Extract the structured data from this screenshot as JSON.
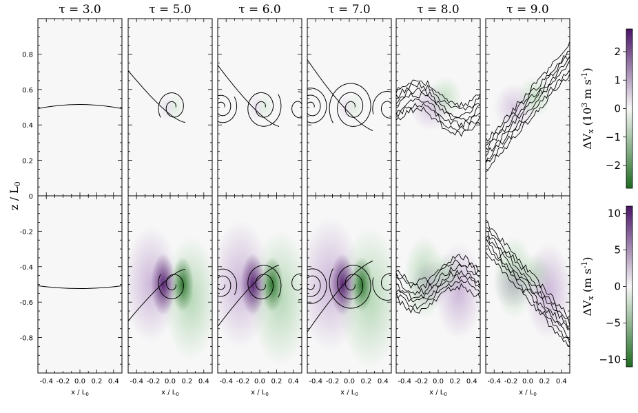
{
  "chart_data": {
    "type": "heatmap",
    "description_panels": "6 time snapshots (columns) x 2 regions (rows) of Delta V_x with black field-line contours",
    "panel_titles": [
      "τ = 3.0",
      "τ = 5.0",
      "τ = 6.0",
      "τ = 7.0",
      "τ = 8.0",
      "τ = 9.0"
    ],
    "tau": [
      3.0,
      5.0,
      6.0,
      7.0,
      8.0,
      9.0
    ],
    "xlabel": "x / L",
    "xlabel_sub": "0",
    "ylabel": "z / L",
    "ylabel_sub": "0",
    "x_ticks": [
      "-0.4",
      "-0.2",
      "0.0",
      "0.2",
      "0.4"
    ],
    "xlim": [
      -0.5,
      0.5
    ],
    "rows": [
      {
        "region": "upper",
        "ylim": [
          0.0,
          1.0
        ],
        "y_ticks": [
          "0",
          "0.2",
          "0.4",
          "0.6",
          "0.8"
        ],
        "colorbar": {
          "label": "ΔV",
          "label_sub": "x",
          "units_prefix": "(10",
          "units_exp": "3",
          "units_mid": " m s",
          "units_exp2": "-1",
          "units_suffix": ")",
          "range": [
            -2.8,
            2.8
          ],
          "ticks": [
            "2",
            "1",
            "0",
            "−1",
            "−2"
          ],
          "colors": [
            "#1f6b20",
            "#f7f7f7",
            "#4a1466"
          ]
        },
        "interface_height": 0.5,
        "amplitude_by_panel": [
          0.03,
          0.2,
          0.3,
          0.35,
          0.5,
          0.7
        ]
      },
      {
        "region": "lower",
        "ylim": [
          -1.0,
          0.0
        ],
        "y_ticks": [
          "-0.2",
          "-0.4",
          "-0.6",
          "-0.8"
        ],
        "colorbar": {
          "label": "ΔV",
          "label_sub": "x",
          "units": "(m s",
          "units_exp": "-1",
          "units_suffix": ")",
          "range": [
            -11,
            11
          ],
          "ticks": [
            "10",
            "5",
            "0",
            "−5",
            "−10"
          ],
          "colors": [
            "#1f6b20",
            "#f7f7f7",
            "#4a1466"
          ]
        },
        "interface_height": -0.5,
        "amplitude_by_panel": [
          0.03,
          0.2,
          0.3,
          0.35,
          0.5,
          0.7
        ]
      }
    ]
  }
}
